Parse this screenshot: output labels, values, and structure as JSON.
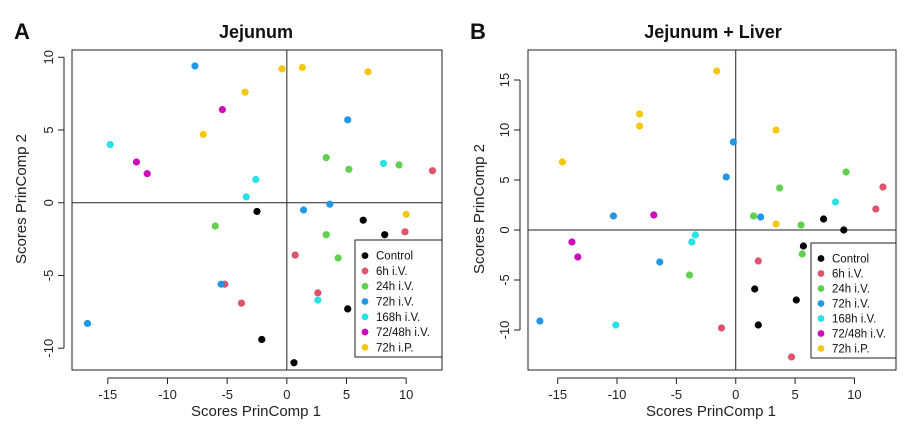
{
  "panels": [
    {
      "letter": "A",
      "title": "Jejunum"
    },
    {
      "letter": "B",
      "title": "Jejunum + Liver"
    }
  ],
  "chart_data": [
    {
      "type": "scatter",
      "title": "Jejunum",
      "xlabel": "Scores PrinComp 1",
      "ylabel": "Scores PrinComp 2",
      "xlim": [
        -18,
        13
      ],
      "ylim": [
        -11.5,
        10.5
      ],
      "xticks": [
        -15,
        -10,
        -5,
        0,
        5,
        10
      ],
      "yticks": [
        -10,
        -5,
        0,
        5,
        10
      ],
      "reference_lines": {
        "x": 0,
        "y": 0
      },
      "legend_position": "bottom-right",
      "series": [
        {
          "name": "Control",
          "color": "#000000",
          "points": [
            [
              -2.5,
              -0.6
            ],
            [
              6.4,
              -1.2
            ],
            [
              8.2,
              -2.2
            ],
            [
              5.1,
              -7.3
            ],
            [
              -2.1,
              -9.4
            ],
            [
              0.6,
              -11.0
            ]
          ]
        },
        {
          "name": "6h i.V.",
          "color": "#DF536B",
          "points": [
            [
              12.2,
              2.2
            ],
            [
              9.9,
              -2.0
            ],
            [
              0.7,
              -3.6
            ],
            [
              2.6,
              -6.2
            ],
            [
              -5.2,
              -5.6
            ],
            [
              -3.8,
              -6.9
            ]
          ]
        },
        {
          "name": "24h i.V.",
          "color": "#61D04F",
          "points": [
            [
              3.3,
              3.1
            ],
            [
              5.2,
              2.3
            ],
            [
              9.4,
              2.6
            ],
            [
              3.3,
              -2.2
            ],
            [
              4.3,
              -3.8
            ],
            [
              -6.0,
              -1.6
            ]
          ]
        },
        {
          "name": "72h i.V.",
          "color": "#2297E6",
          "points": [
            [
              -7.7,
              9.4
            ],
            [
              5.1,
              5.7
            ],
            [
              3.6,
              -0.1
            ],
            [
              1.4,
              -0.5
            ],
            [
              -5.5,
              -5.6
            ],
            [
              -16.7,
              -8.3
            ]
          ]
        },
        {
          "name": "168h i.V.",
          "color": "#28E2E5",
          "points": [
            [
              -14.8,
              4.0
            ],
            [
              8.1,
              2.7
            ],
            [
              -2.6,
              1.6
            ],
            [
              -3.4,
              0.4
            ],
            [
              2.6,
              -6.7
            ]
          ]
        },
        {
          "name": "72/48h i.V.",
          "color": "#CD0BBC",
          "points": [
            [
              -5.4,
              6.4
            ],
            [
              -12.6,
              2.8
            ],
            [
              -11.7,
              2.0
            ]
          ]
        },
        {
          "name": "72h i.P.",
          "color": "#F5C710",
          "points": [
            [
              -0.4,
              9.2
            ],
            [
              1.3,
              9.3
            ],
            [
              6.8,
              9.0
            ],
            [
              -3.5,
              7.6
            ],
            [
              -7.0,
              4.7
            ],
            [
              10.0,
              -0.8
            ]
          ]
        }
      ]
    },
    {
      "type": "scatter",
      "title": "Jejunum + Liver",
      "xlabel": "Scores PrinComp 1",
      "ylabel": "Scores PrinComp 2",
      "xlim": [
        -17.5,
        13.5
      ],
      "ylim": [
        -14,
        18
      ],
      "xticks": [
        -15,
        -10,
        -5,
        0,
        5,
        10
      ],
      "yticks": [
        -10,
        -5,
        0,
        5,
        10,
        15
      ],
      "reference_lines": {
        "x": 0,
        "y": 0
      },
      "legend_position": "bottom-right",
      "series": [
        {
          "name": "Control",
          "color": "#000000",
          "points": [
            [
              7.4,
              1.1
            ],
            [
              9.1,
              0.0
            ],
            [
              5.7,
              -1.6
            ],
            [
              1.6,
              -5.9
            ],
            [
              5.1,
              -7.0
            ],
            [
              1.9,
              -9.5
            ]
          ]
        },
        {
          "name": "6h i.V.",
          "color": "#DF536B",
          "points": [
            [
              12.4,
              4.3
            ],
            [
              11.8,
              2.1
            ],
            [
              1.9,
              -3.1
            ],
            [
              -1.2,
              -9.8
            ],
            [
              4.7,
              -12.7
            ]
          ]
        },
        {
          "name": "24h i.V.",
          "color": "#61D04F",
          "points": [
            [
              9.3,
              5.8
            ],
            [
              3.7,
              4.2
            ],
            [
              1.5,
              1.4
            ],
            [
              5.5,
              0.5
            ],
            [
              5.6,
              -2.4
            ],
            [
              -3.9,
              -4.5
            ]
          ]
        },
        {
          "name": "72h i.V.",
          "color": "#2297E6",
          "points": [
            [
              -0.2,
              8.8
            ],
            [
              -0.8,
              5.3
            ],
            [
              2.1,
              1.3
            ],
            [
              -10.3,
              1.4
            ],
            [
              -6.4,
              -3.2
            ],
            [
              -16.5,
              -9.1
            ]
          ]
        },
        {
          "name": "168h i.V.",
          "color": "#28E2E5",
          "points": [
            [
              8.4,
              2.8
            ],
            [
              -3.4,
              -0.5
            ],
            [
              -3.7,
              -1.2
            ],
            [
              -10.1,
              -9.5
            ]
          ]
        },
        {
          "name": "72/48h i.V.",
          "color": "#CD0BBC",
          "points": [
            [
              -6.9,
              1.5
            ],
            [
              -13.8,
              -1.2
            ],
            [
              -13.3,
              -2.7
            ]
          ]
        },
        {
          "name": "72h i.P.",
          "color": "#F5C710",
          "points": [
            [
              -1.6,
              15.9
            ],
            [
              -8.1,
              11.6
            ],
            [
              -8.1,
              10.4
            ],
            [
              3.4,
              10.0
            ],
            [
              -14.6,
              6.8
            ],
            [
              3.4,
              0.6
            ]
          ]
        }
      ]
    }
  ]
}
